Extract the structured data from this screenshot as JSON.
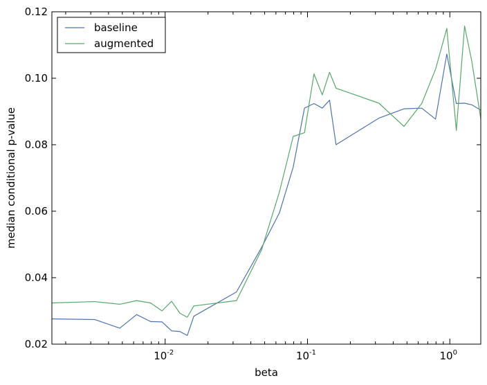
{
  "chart_data": {
    "type": "line",
    "xlabel": "beta",
    "ylabel": "median conditional p-value",
    "xscale": "log",
    "xlim": [
      0.0016,
      1.65
    ],
    "ylim": [
      0.02,
      0.12
    ],
    "grid": false,
    "legend_position": "top-left",
    "x_ticks": [
      {
        "value": 0.01,
        "base": "10",
        "exp": "-2"
      },
      {
        "value": 0.1,
        "base": "10",
        "exp": "-1"
      },
      {
        "value": 1,
        "base": "10",
        "exp": "0"
      }
    ],
    "y_ticks": [
      {
        "value": 0.02,
        "label": "0.02"
      },
      {
        "value": 0.04,
        "label": "0.04"
      },
      {
        "value": 0.06,
        "label": "0.06"
      },
      {
        "value": 0.08,
        "label": "0.08"
      },
      {
        "value": 0.1,
        "label": "0.10"
      },
      {
        "value": 0.12,
        "label": "0.12"
      }
    ],
    "series": [
      {
        "name": "baseline",
        "color": "#4c72b0",
        "points": [
          [
            0.0016,
            0.0276
          ],
          [
            0.0032,
            0.0274
          ],
          [
            0.0048,
            0.0248
          ],
          [
            0.0063,
            0.0289
          ],
          [
            0.0079,
            0.0268
          ],
          [
            0.0095,
            0.0267
          ],
          [
            0.0111,
            0.024
          ],
          [
            0.0127,
            0.0238
          ],
          [
            0.0143,
            0.0226
          ],
          [
            0.0159,
            0.0284
          ],
          [
            0.0317,
            0.0357
          ],
          [
            0.0476,
            0.0491
          ],
          [
            0.0635,
            0.0595
          ],
          [
            0.0794,
            0.0733
          ],
          [
            0.0952,
            0.091
          ],
          [
            0.1111,
            0.0924
          ],
          [
            0.127,
            0.091
          ],
          [
            0.1429,
            0.0934
          ],
          [
            0.1587,
            0.08
          ],
          [
            0.3175,
            0.088
          ],
          [
            0.4762,
            0.0908
          ],
          [
            0.6349,
            0.091
          ],
          [
            0.7937,
            0.0877
          ],
          [
            0.9524,
            0.1073
          ],
          [
            1.1111,
            0.0924
          ],
          [
            1.2698,
            0.0925
          ],
          [
            1.4286,
            0.092
          ],
          [
            1.65,
            0.0904
          ]
        ]
      },
      {
        "name": "augmented",
        "color": "#55a868",
        "points": [
          [
            0.0016,
            0.0324
          ],
          [
            0.0032,
            0.0328
          ],
          [
            0.0048,
            0.032
          ],
          [
            0.0063,
            0.0331
          ],
          [
            0.0079,
            0.0324
          ],
          [
            0.0095,
            0.03
          ],
          [
            0.0111,
            0.0329
          ],
          [
            0.0127,
            0.0293
          ],
          [
            0.0143,
            0.0281
          ],
          [
            0.0159,
            0.0315
          ],
          [
            0.0317,
            0.0331
          ],
          [
            0.0476,
            0.0484
          ],
          [
            0.0635,
            0.0658
          ],
          [
            0.0794,
            0.0825
          ],
          [
            0.0952,
            0.0836
          ],
          [
            0.1111,
            0.1013
          ],
          [
            0.127,
            0.095
          ],
          [
            0.1429,
            0.1018
          ],
          [
            0.1587,
            0.097
          ],
          [
            0.3175,
            0.0925
          ],
          [
            0.4762,
            0.0855
          ],
          [
            0.6349,
            0.0924
          ],
          [
            0.7937,
            0.1027
          ],
          [
            0.9524,
            0.115
          ],
          [
            1.1111,
            0.0843
          ],
          [
            1.2698,
            0.1157
          ],
          [
            1.4286,
            0.105
          ],
          [
            1.65,
            0.0878
          ]
        ]
      }
    ]
  }
}
